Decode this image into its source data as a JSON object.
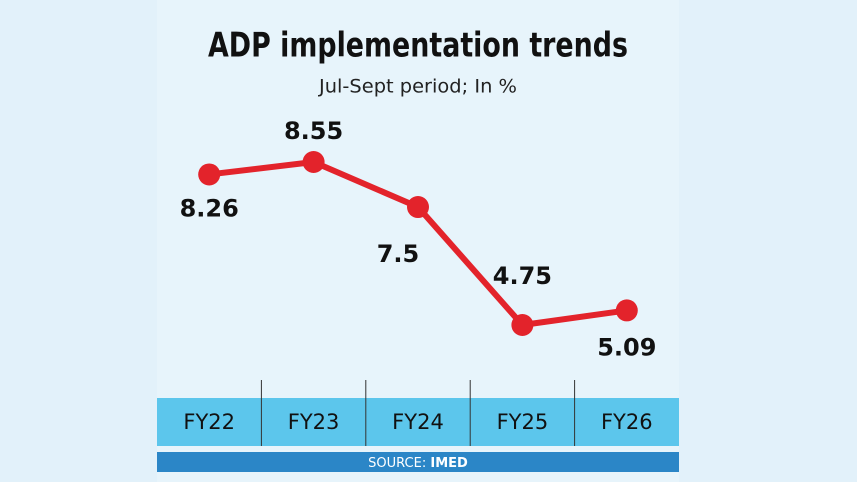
{
  "chart_data": {
    "type": "line",
    "title": "ADP implementation trends",
    "subtitle": "Jul-Sept period; In %",
    "categories": [
      "FY22",
      "FY23",
      "FY24",
      "FY25",
      "FY26"
    ],
    "series": [
      {
        "name": "ADP implementation",
        "color": "#e3232b",
        "values": [
          8.26,
          8.55,
          7.5,
          4.75,
          5.09
        ]
      }
    ],
    "source": {
      "label": "SOURCE:",
      "name": "IMED"
    }
  }
}
